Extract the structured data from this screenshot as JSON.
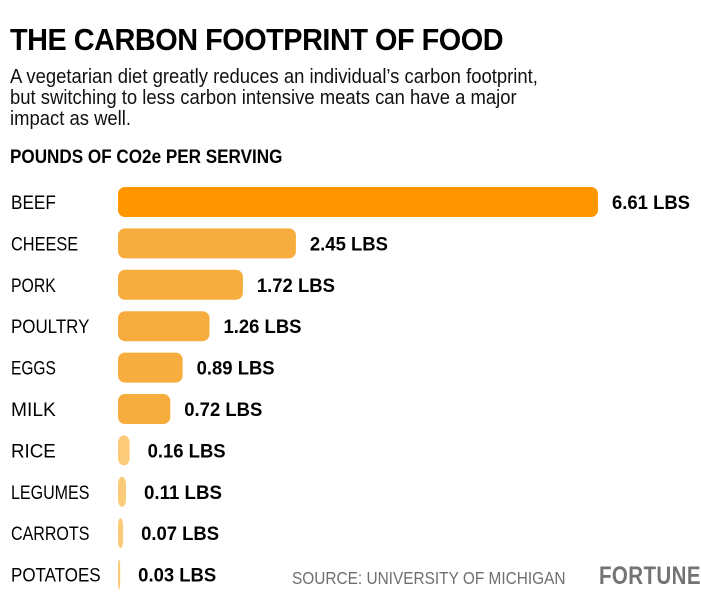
{
  "header": {
    "title": "THE CARBON FOOTPRINT OF FOOD",
    "subtitle_lines": [
      "A vegetarian diet greatly reduces an individual’s carbon footprint,",
      "but switching to less carbon intensive meats can have a major",
      "impact as well."
    ]
  },
  "footer": {
    "source": "SOURCE: UNIVERSITY OF MICHIGAN",
    "logo": "FORTUNE"
  },
  "colors": {
    "highlight": "#FF9600",
    "mid": "#F7AD3E",
    "light": "#FCCB7A",
    "text": "#000000",
    "muted": "#6F6F6F"
  },
  "chart_data": {
    "type": "bar",
    "orientation": "horizontal",
    "title": "POUNDS OF CO2e PER SERVING",
    "xlabel": "",
    "ylabel": "",
    "unit_suffix": " LBS",
    "categories": [
      "BEEF",
      "CHEESE",
      "PORK",
      "POULTRY",
      "EGGS",
      "MILK",
      "RICE",
      "LEGUMES",
      "CARROTS",
      "POTATOES"
    ],
    "values": [
      6.61,
      2.45,
      1.72,
      1.26,
      0.89,
      0.72,
      0.16,
      0.11,
      0.07,
      0.03
    ],
    "value_labels": [
      "6.61 LBS",
      "2.45 LBS",
      "1.72 LBS",
      "1.26 LBS",
      "0.89 LBS",
      "0.72 LBS",
      "0.16 LBS",
      "0.11 LBS",
      "0.07 LBS",
      "0.03 LBS"
    ],
    "bar_color_groups": [
      "highlight",
      "mid",
      "mid",
      "mid",
      "mid",
      "mid",
      "light",
      "light",
      "light",
      "light"
    ],
    "xlim": [
      0,
      6.61
    ],
    "grid": false,
    "legend": "none"
  }
}
